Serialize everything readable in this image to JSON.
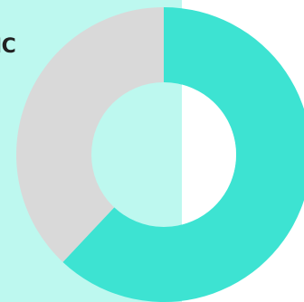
{
  "heading_fragment": "IC",
  "colors": {
    "panel": "#bdf8ef",
    "hole": "#bdf8ef",
    "hole_right": "#ffffff"
  },
  "chart_data": {
    "type": "pie",
    "donut": true,
    "slices": [
      {
        "value": 62,
        "color": "#3de3d2"
      },
      {
        "value": 38,
        "color": "#d9d9d9"
      }
    ]
  }
}
